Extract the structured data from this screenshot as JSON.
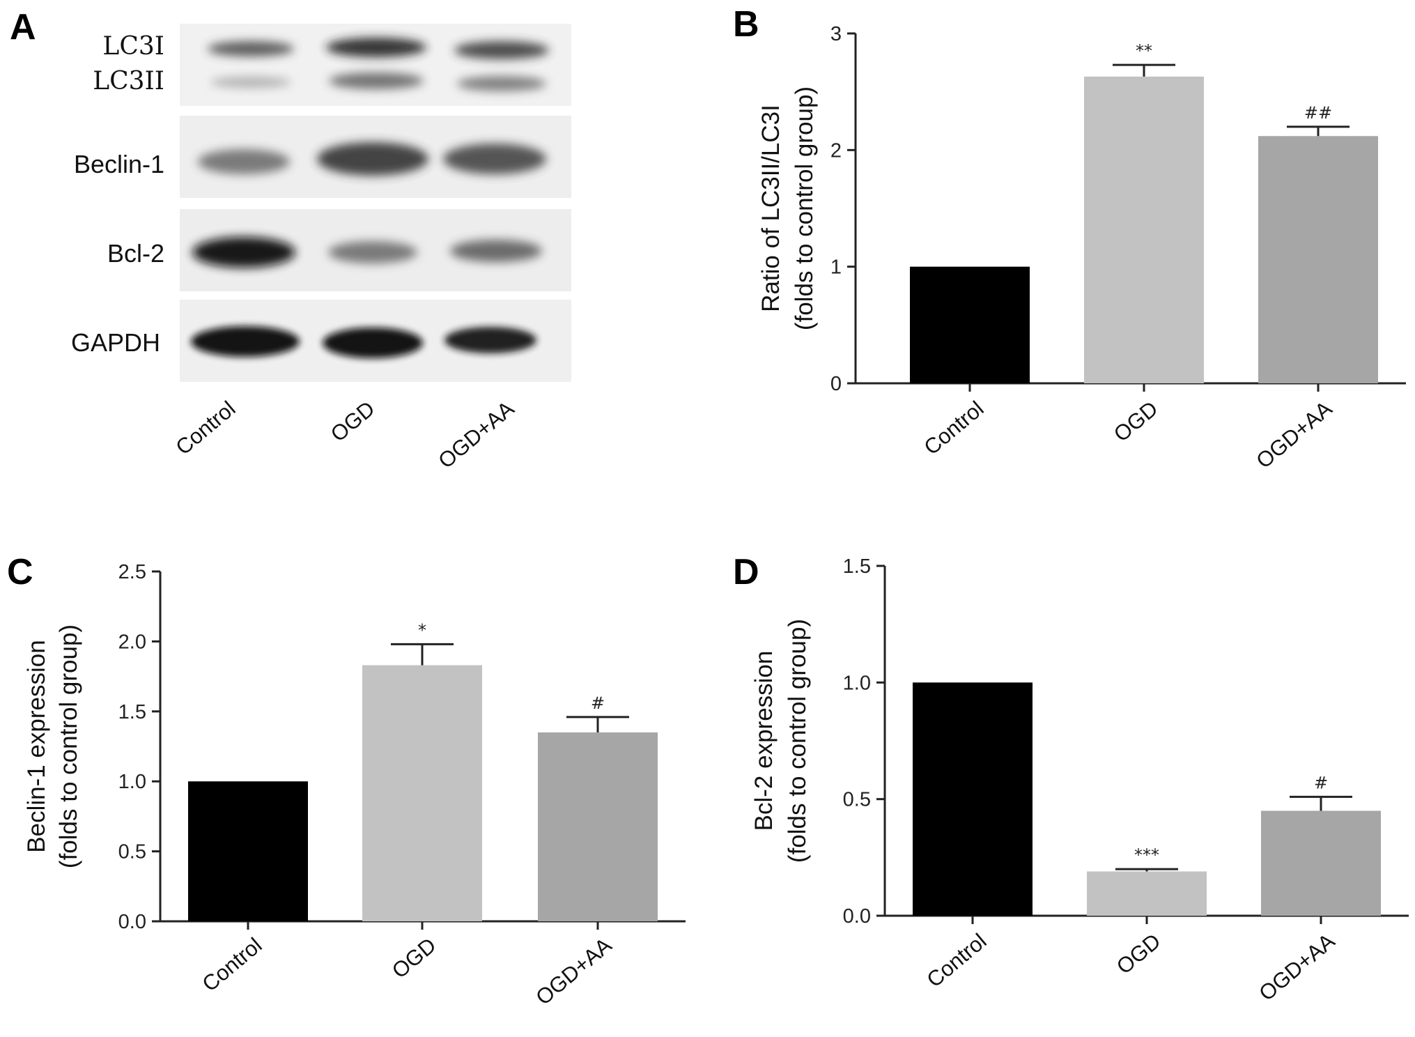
{
  "panels": {
    "A": "A",
    "B": "B",
    "C": "C",
    "D": "D"
  },
  "blot": {
    "rows": [
      "LC3I",
      "LC3II",
      "Beclin-1",
      "Bcl-2",
      "GAPDH"
    ],
    "lanes": [
      "Control",
      "OGD",
      "OGD+AA"
    ]
  },
  "chart_data": [
    {
      "panel": "B",
      "type": "bar",
      "categories": [
        "Control",
        "OGD",
        "OGD+AA"
      ],
      "values": [
        1.0,
        2.63,
        2.12
      ],
      "errors": [
        0.0,
        0.1,
        0.08
      ],
      "significance": [
        "",
        "**",
        "##"
      ],
      "bar_colors": [
        "#000000",
        "#c2c2c2",
        "#a6a6a6"
      ],
      "ylabel_line1": "Ratio of LC3II/LC3I",
      "ylabel_line2": "(folds to control group)",
      "ylim": [
        0,
        3
      ],
      "yticks": [
        0,
        1,
        2,
        3
      ],
      "ytick_labels": [
        "0",
        "1",
        "2",
        "3"
      ]
    },
    {
      "panel": "C",
      "type": "bar",
      "categories": [
        "Control",
        "OGD",
        "OGD+AA"
      ],
      "values": [
        1.0,
        1.83,
        1.35
      ],
      "errors": [
        0.0,
        0.15,
        0.11
      ],
      "significance": [
        "",
        "*",
        "#"
      ],
      "bar_colors": [
        "#000000",
        "#c2c2c2",
        "#a6a6a6"
      ],
      "ylabel_line1": "Beclin-1 expression",
      "ylabel_line2": "(folds to control group)",
      "ylim": [
        0,
        2.5
      ],
      "yticks": [
        0,
        0.5,
        1.0,
        1.5,
        2.0,
        2.5
      ],
      "ytick_labels": [
        "0.0",
        "0.5",
        "1.0",
        "1.5",
        "2.0",
        "2.5"
      ]
    },
    {
      "panel": "D",
      "type": "bar",
      "categories": [
        "Control",
        "OGD",
        "OGD+AA"
      ],
      "values": [
        1.0,
        0.19,
        0.45
      ],
      "errors": [
        0.0,
        0.01,
        0.06
      ],
      "significance": [
        "",
        "***",
        "#"
      ],
      "bar_colors": [
        "#000000",
        "#c2c2c2",
        "#a6a6a6"
      ],
      "ylabel_line1": "Bcl-2 expression",
      "ylabel_line2": "(folds to control group)",
      "ylim": [
        0,
        1.5
      ],
      "yticks": [
        0,
        0.5,
        1.0,
        1.5
      ],
      "ytick_labels": [
        "0.0",
        "0.5",
        "1.0",
        "1.5"
      ]
    }
  ]
}
